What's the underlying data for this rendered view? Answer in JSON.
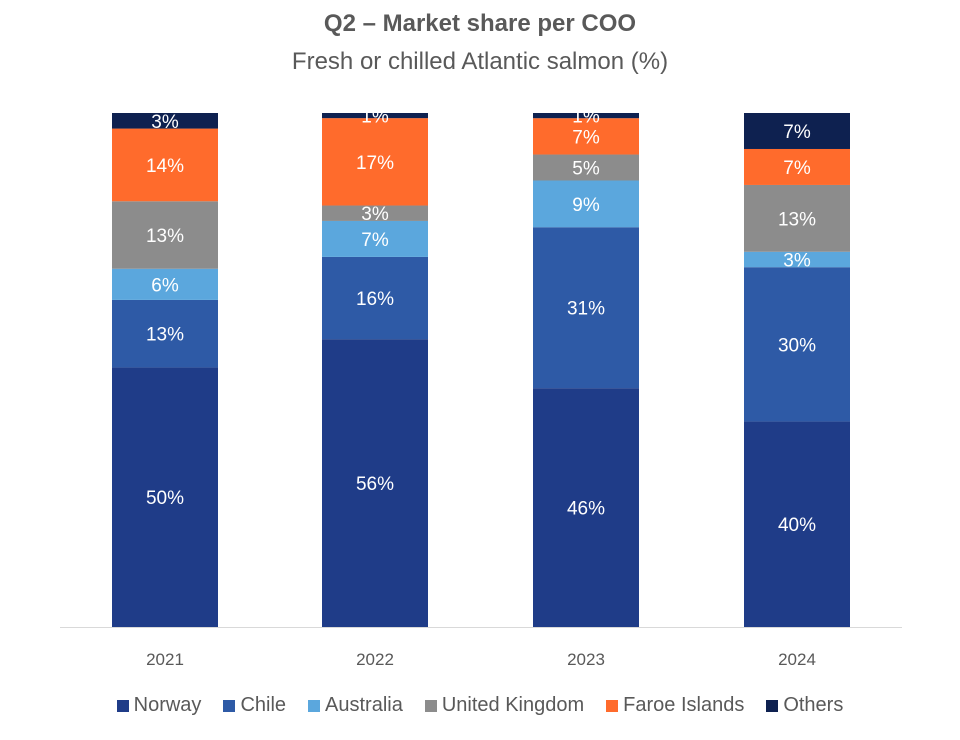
{
  "chart_data": {
    "type": "bar",
    "stacked": true,
    "title": "Q2 – Market share per COO",
    "subtitle": "Fresh or chilled Atlantic salmon (%)",
    "categories": [
      "2021",
      "2022",
      "2023",
      "2024"
    ],
    "series": [
      {
        "name": "Norway",
        "color": "#1F3C88",
        "values": [
          50,
          56,
          46,
          40
        ]
      },
      {
        "name": "Chile",
        "color": "#2E5AA6",
        "values": [
          13,
          16,
          31,
          30
        ]
      },
      {
        "name": "Australia",
        "color": "#5BA7DD",
        "values": [
          6,
          7,
          9,
          3
        ]
      },
      {
        "name": "United Kingdom",
        "color": "#8C8C8C",
        "values": [
          13,
          3,
          5,
          13
        ]
      },
      {
        "name": "Faroe Islands",
        "color": "#FF6B2C",
        "values": [
          14,
          17,
          7,
          7
        ]
      },
      {
        "name": "Others",
        "color": "#0E2150",
        "values": [
          3,
          1,
          1,
          7
        ]
      }
    ],
    "ylim": [
      0,
      100
    ],
    "legend": "bottom",
    "grid": false
  }
}
